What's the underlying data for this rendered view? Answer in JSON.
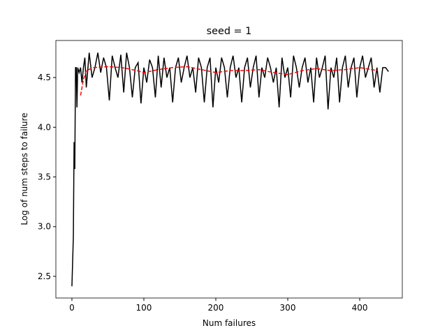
{
  "chart_data": {
    "type": "line",
    "title": "seed = 1",
    "x_label": "Num failures",
    "y_label": "Log of num steps to failure",
    "xlim": [
      -22.3,
      459.2
    ],
    "ylim": [
      2.282,
      4.873
    ],
    "xticks": [
      0,
      100,
      200,
      300,
      400
    ],
    "yticks": [
      2.5,
      {
        "value": 3,
        "label": "3.0"
      },
      3.5,
      {
        "value": 4,
        "label": "4.0"
      },
      4.5
    ],
    "series": [
      {
        "color": "#000000",
        "dash": false,
        "x": [
          0,
          2,
          3,
          4,
          5,
          6,
          7,
          8,
          10,
          12,
          14,
          16,
          18,
          20,
          24,
          28,
          32,
          36,
          40,
          44,
          48,
          52,
          56,
          60,
          64,
          68,
          72,
          76,
          80,
          84,
          88,
          92,
          96,
          100,
          104,
          108,
          112,
          116,
          120,
          124,
          128,
          132,
          136,
          140,
          144,
          148,
          152,
          156,
          160,
          164,
          168,
          172,
          176,
          180,
          184,
          188,
          192,
          196,
          200,
          204,
          208,
          212,
          216,
          220,
          224,
          228,
          232,
          236,
          240,
          244,
          248,
          252,
          256,
          260,
          264,
          268,
          272,
          276,
          280,
          284,
          288,
          292,
          296,
          300,
          304,
          308,
          312,
          316,
          320,
          324,
          328,
          332,
          336,
          340,
          344,
          348,
          352,
          356,
          360,
          364,
          368,
          372,
          376,
          380,
          384,
          388,
          392,
          396,
          400,
          404,
          408,
          412,
          416,
          420,
          424,
          428,
          432,
          436,
          440
        ],
        "values": [
          2.4,
          2.9,
          3.85,
          3.58,
          4.6,
          4.6,
          4.2,
          4.6,
          4.55,
          4.6,
          4.45,
          4.6,
          4.7,
          4.4,
          4.75,
          4.5,
          4.6,
          4.75,
          4.55,
          4.7,
          4.6,
          4.27,
          4.72,
          4.6,
          4.5,
          4.73,
          4.35,
          4.75,
          4.6,
          4.3,
          4.6,
          4.65,
          4.24,
          4.6,
          4.45,
          4.68,
          4.6,
          4.3,
          4.72,
          4.4,
          4.7,
          4.5,
          4.6,
          4.25,
          4.6,
          4.7,
          4.45,
          4.6,
          4.72,
          4.5,
          4.6,
          4.35,
          4.7,
          4.6,
          4.25,
          4.6,
          4.7,
          4.2,
          4.6,
          4.45,
          4.7,
          4.6,
          4.3,
          4.6,
          4.72,
          4.5,
          4.6,
          4.25,
          4.6,
          4.7,
          4.4,
          4.6,
          4.72,
          4.3,
          4.6,
          4.5,
          4.7,
          4.6,
          4.45,
          4.6,
          4.2,
          4.7,
          4.5,
          4.6,
          4.3,
          4.72,
          4.6,
          4.4,
          4.6,
          4.7,
          4.45,
          4.6,
          4.25,
          4.7,
          4.5,
          4.6,
          4.72,
          4.18,
          4.6,
          4.5,
          4.7,
          4.25,
          4.6,
          4.72,
          4.4,
          4.6,
          4.7,
          4.3,
          4.6,
          4.72,
          4.5,
          4.6,
          4.7,
          4.4,
          4.6,
          4.35,
          4.6,
          4.6,
          4.56
        ]
      },
      {
        "color": "#ff0000",
        "dash": true,
        "x": [
          12,
          16,
          20,
          30,
          50,
          70,
          90,
          100,
          120,
          140,
          160,
          180,
          200,
          220,
          240,
          260,
          280,
          300,
          320,
          340,
          360,
          380,
          400,
          425
        ],
        "values": [
          4.32,
          4.48,
          4.57,
          4.6,
          4.61,
          4.6,
          4.57,
          4.55,
          4.58,
          4.6,
          4.61,
          4.58,
          4.55,
          4.57,
          4.57,
          4.58,
          4.55,
          4.53,
          4.57,
          4.59,
          4.57,
          4.58,
          4.6,
          4.57
        ]
      }
    ]
  }
}
